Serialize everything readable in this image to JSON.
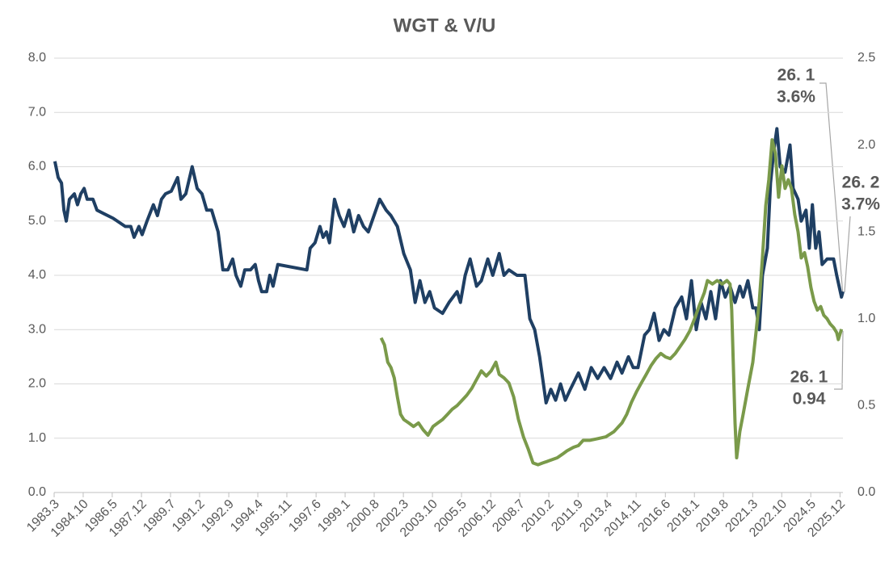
{
  "chart_data": {
    "type": "line",
    "title": "WGT & V/U",
    "xlim": [
      1983.17,
      2026.08
    ],
    "xticks": [
      {
        "value": 1983.17,
        "label": "1983.3"
      },
      {
        "value": 1984.75,
        "label": "1984.10"
      },
      {
        "value": 1986.33,
        "label": "1986.5"
      },
      {
        "value": 1987.92,
        "label": "1987.12"
      },
      {
        "value": 1989.5,
        "label": "1989.7"
      },
      {
        "value": 1991.08,
        "label": "1991.2"
      },
      {
        "value": 1992.67,
        "label": "1992.9"
      },
      {
        "value": 1994.25,
        "label": "1994.4"
      },
      {
        "value": 1995.83,
        "label": "1995.11"
      },
      {
        "value": 1997.42,
        "label": "1997.6"
      },
      {
        "value": 1999.0,
        "label": "1999.1"
      },
      {
        "value": 2000.58,
        "label": "2000.8"
      },
      {
        "value": 2002.17,
        "label": "2002.3"
      },
      {
        "value": 2003.75,
        "label": "2003.10"
      },
      {
        "value": 2005.33,
        "label": "2005.5"
      },
      {
        "value": 2006.92,
        "label": "2006.12"
      },
      {
        "value": 2008.5,
        "label": "2008.7"
      },
      {
        "value": 2010.08,
        "label": "2010.2"
      },
      {
        "value": 2011.67,
        "label": "2011.9"
      },
      {
        "value": 2013.25,
        "label": "2013.4"
      },
      {
        "value": 2014.83,
        "label": "2014.11"
      },
      {
        "value": 2016.42,
        "label": "2016.6"
      },
      {
        "value": 2018.0,
        "label": "2018.1"
      },
      {
        "value": 2019.58,
        "label": "2019.8"
      },
      {
        "value": 2021.17,
        "label": "2021.3"
      },
      {
        "value": 2022.75,
        "label": "2022.10"
      },
      {
        "value": 2024.33,
        "label": "2024.5"
      },
      {
        "value": 2025.92,
        "label": "2025.12"
      }
    ],
    "ylim": [
      0,
      8
    ],
    "yticks": [
      {
        "value": 0,
        "label": "0.0"
      },
      {
        "value": 1,
        "label": "1.0"
      },
      {
        "value": 2,
        "label": "2.0"
      },
      {
        "value": 3,
        "label": "3.0"
      },
      {
        "value": 4,
        "label": "4.0"
      },
      {
        "value": 5,
        "label": "5.0"
      },
      {
        "value": 6,
        "label": "6.0"
      },
      {
        "value": 7,
        "label": "7.0"
      },
      {
        "value": 8,
        "label": "8.0"
      }
    ],
    "y2lim": [
      0,
      2.5
    ],
    "y2ticks": [
      {
        "value": 0,
        "label": "0.0"
      },
      0.5,
      {
        "value": 1,
        "label": "1.0"
      },
      1.5,
      {
        "value": 2,
        "label": "2.0"
      },
      2.5
    ],
    "grid": true,
    "series": [
      {
        "color": "#1f3f63",
        "x": [
          1983.21,
          1983.39,
          1983.57,
          1983.7,
          1983.83,
          1984.0,
          1984.27,
          1984.44,
          1984.62,
          1984.8,
          1984.97,
          1985.28,
          1985.5,
          1986.38,
          1987.04,
          1987.34,
          1987.52,
          1987.78,
          1987.96,
          1988.22,
          1988.57,
          1988.79,
          1989.01,
          1989.23,
          1989.54,
          1989.89,
          1990.07,
          1990.33,
          1990.68,
          1990.95,
          1991.21,
          1991.47,
          1991.74,
          1992.09,
          1992.35,
          1992.62,
          1992.88,
          1993.06,
          1993.32,
          1993.54,
          1993.85,
          1994.11,
          1994.29,
          1994.46,
          1994.73,
          1994.9,
          1995.08,
          1995.34,
          1996.92,
          1997.1,
          1997.36,
          1997.63,
          1997.8,
          1997.98,
          1998.15,
          1998.42,
          1998.68,
          1998.94,
          1999.21,
          1999.47,
          1999.73,
          2000.0,
          2000.26,
          2000.88,
          2001.23,
          2001.49,
          2001.84,
          2002.19,
          2002.55,
          2002.81,
          2003.07,
          2003.34,
          2003.6,
          2003.86,
          2004.3,
          2004.65,
          2005.09,
          2005.27,
          2005.53,
          2005.8,
          2006.15,
          2006.41,
          2006.76,
          2007.03,
          2007.38,
          2007.64,
          2007.91,
          2008.35,
          2008.78,
          2009.05,
          2009.31,
          2009.58,
          2009.93,
          2010.19,
          2010.45,
          2010.72,
          2010.98,
          2011.25,
          2011.69,
          2012.04,
          2012.39,
          2012.74,
          2013.09,
          2013.44,
          2013.79,
          2014.06,
          2014.41,
          2014.67,
          2014.93,
          2015.29,
          2015.55,
          2015.81,
          2016.08,
          2016.34,
          2016.61,
          2016.96,
          2017.31,
          2017.57,
          2017.84,
          2018.1,
          2018.36,
          2018.63,
          2018.89,
          2019.15,
          2019.42,
          2019.68,
          2019.94,
          2020.21,
          2020.47,
          2020.65,
          2020.91,
          2021.18,
          2021.35,
          2021.53,
          2021.7,
          2021.97,
          2022.14,
          2022.32,
          2022.49,
          2022.67,
          2022.93,
          2023.2,
          2023.37,
          2023.64,
          2023.81,
          2024.07,
          2024.25,
          2024.42,
          2024.6,
          2024.78,
          2024.95,
          2025.22,
          2025.57,
          2025.74,
          2026.0,
          2026.08
        ],
        "values": [
          6.1,
          5.8,
          5.7,
          5.2,
          5.0,
          5.4,
          5.5,
          5.3,
          5.5,
          5.6,
          5.4,
          5.4,
          5.2,
          5.05,
          4.9,
          4.9,
          4.7,
          4.9,
          4.75,
          5.0,
          5.3,
          5.1,
          5.4,
          5.5,
          5.55,
          5.8,
          5.4,
          5.5,
          6.0,
          5.6,
          5.5,
          5.2,
          5.2,
          4.8,
          4.1,
          4.1,
          4.3,
          4.0,
          3.8,
          4.1,
          4.1,
          4.2,
          3.9,
          3.7,
          3.7,
          4.0,
          3.8,
          4.2,
          4.1,
          4.5,
          4.6,
          4.9,
          4.7,
          4.8,
          4.6,
          5.4,
          5.1,
          4.9,
          5.2,
          4.8,
          5.1,
          4.9,
          4.8,
          5.4,
          5.2,
          5.1,
          4.9,
          4.4,
          4.1,
          3.5,
          3.9,
          3.5,
          3.7,
          3.4,
          3.3,
          3.5,
          3.7,
          3.5,
          4.0,
          4.3,
          3.8,
          3.9,
          4.3,
          4.0,
          4.4,
          4.0,
          4.1,
          4.0,
          4.0,
          3.2,
          3.0,
          2.5,
          1.65,
          1.9,
          1.7,
          2.0,
          1.7,
          1.9,
          2.2,
          1.9,
          2.3,
          2.1,
          2.3,
          2.1,
          2.4,
          2.2,
          2.5,
          2.3,
          2.3,
          2.9,
          3.0,
          3.3,
          2.8,
          3.0,
          2.9,
          3.4,
          3.6,
          3.2,
          3.9,
          3.0,
          3.5,
          3.2,
          3.7,
          3.2,
          3.9,
          3.6,
          3.8,
          3.5,
          3.8,
          3.6,
          3.9,
          3.4,
          3.4,
          3.0,
          4.0,
          4.5,
          5.7,
          6.3,
          6.7,
          6.0,
          5.9,
          6.4,
          5.6,
          5.4,
          5.0,
          5.2,
          4.5,
          5.3,
          4.5,
          4.8,
          4.2,
          4.3,
          4.3,
          4.0,
          3.6,
          3.7
        ]
      },
      {
        "color": "#7a9a4a",
        "axis": "y2",
        "x": [
          2000.96,
          2001.14,
          2001.32,
          2001.49,
          2001.67,
          2001.84,
          2002.02,
          2002.19,
          2002.46,
          2002.72,
          2002.99,
          2003.25,
          2003.51,
          2003.78,
          2004.04,
          2004.3,
          2004.57,
          2004.83,
          2005.09,
          2005.36,
          2005.62,
          2005.89,
          2006.15,
          2006.41,
          2006.68,
          2006.94,
          2007.2,
          2007.38,
          2007.64,
          2007.91,
          2008.17,
          2008.43,
          2008.7,
          2008.96,
          2009.22,
          2009.49,
          2009.75,
          2010.02,
          2010.28,
          2010.54,
          2010.81,
          2011.07,
          2011.42,
          2011.69,
          2011.95,
          2012.3,
          2012.74,
          2013.18,
          2013.62,
          2014.06,
          2014.32,
          2014.58,
          2014.85,
          2015.11,
          2015.38,
          2015.64,
          2015.9,
          2016.17,
          2016.43,
          2016.69,
          2016.96,
          2017.22,
          2017.48,
          2017.75,
          2018.01,
          2018.28,
          2018.54,
          2018.71,
          2018.98,
          2019.24,
          2019.51,
          2019.77,
          2019.94,
          2020.03,
          2020.21,
          2020.3,
          2020.47,
          2020.65,
          2020.91,
          2021.18,
          2021.35,
          2021.53,
          2021.7,
          2021.88,
          2022.05,
          2022.23,
          2022.41,
          2022.58,
          2022.76,
          2022.93,
          2023.11,
          2023.28,
          2023.46,
          2023.64,
          2023.81,
          2023.99,
          2024.16,
          2024.34,
          2024.51,
          2024.69,
          2024.87,
          2025.04,
          2025.22,
          2025.39,
          2025.57,
          2025.74,
          2025.83,
          2026.0
        ],
        "values": [
          0.89,
          0.85,
          0.75,
          0.72,
          0.66,
          0.55,
          0.45,
          0.42,
          0.4,
          0.38,
          0.4,
          0.36,
          0.33,
          0.38,
          0.4,
          0.42,
          0.45,
          0.48,
          0.5,
          0.53,
          0.56,
          0.6,
          0.65,
          0.7,
          0.67,
          0.7,
          0.75,
          0.68,
          0.66,
          0.63,
          0.55,
          0.42,
          0.32,
          0.25,
          0.17,
          0.16,
          0.17,
          0.18,
          0.19,
          0.2,
          0.22,
          0.24,
          0.26,
          0.27,
          0.3,
          0.3,
          0.31,
          0.32,
          0.35,
          0.4,
          0.45,
          0.52,
          0.58,
          0.63,
          0.68,
          0.73,
          0.77,
          0.8,
          0.78,
          0.77,
          0.8,
          0.84,
          0.88,
          0.93,
          1.0,
          1.08,
          1.15,
          1.22,
          1.2,
          1.22,
          1.2,
          1.22,
          1.2,
          1.05,
          0.4,
          0.2,
          0.35,
          0.45,
          0.6,
          0.75,
          0.92,
          1.1,
          1.35,
          1.65,
          1.8,
          2.03,
          1.95,
          1.7,
          1.88,
          1.75,
          1.8,
          1.75,
          1.6,
          1.5,
          1.35,
          1.38,
          1.3,
          1.18,
          1.1,
          1.05,
          1.07,
          1.02,
          1.0,
          0.97,
          0.95,
          0.92,
          0.88,
          0.94
        ]
      }
    ],
    "annotations": [
      [
        "26. 1",
        "3.6%"
      ],
      [
        "26. 2",
        "3.7%"
      ],
      [
        "26. 1",
        "0.94"
      ]
    ]
  }
}
